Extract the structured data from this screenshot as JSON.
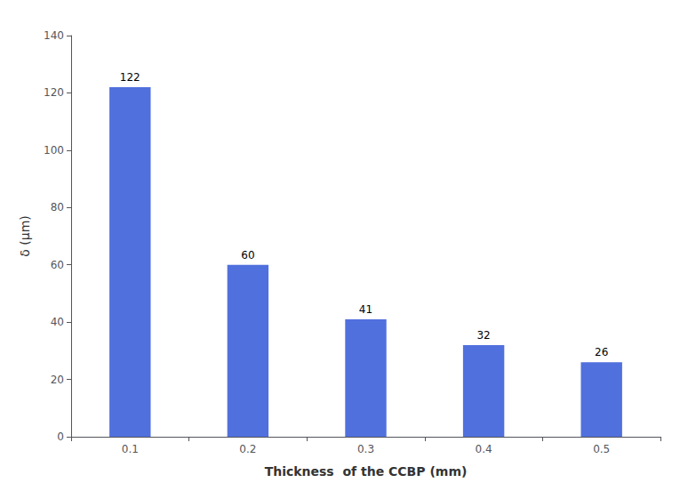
{
  "chart_data": {
    "type": "bar",
    "categories": [
      "0.1",
      "0.2",
      "0.3",
      "0.4",
      "0.5"
    ],
    "values": [
      122,
      60,
      41,
      32,
      26
    ],
    "xlabel": "Thickness  of the CCBP (mm)",
    "ylabel": "δ (μm)",
    "ylim": [
      0,
      140
    ],
    "yticks": [
      0,
      20,
      40,
      60,
      80,
      100,
      120,
      140
    ],
    "data_labels": true,
    "grid": false
  }
}
